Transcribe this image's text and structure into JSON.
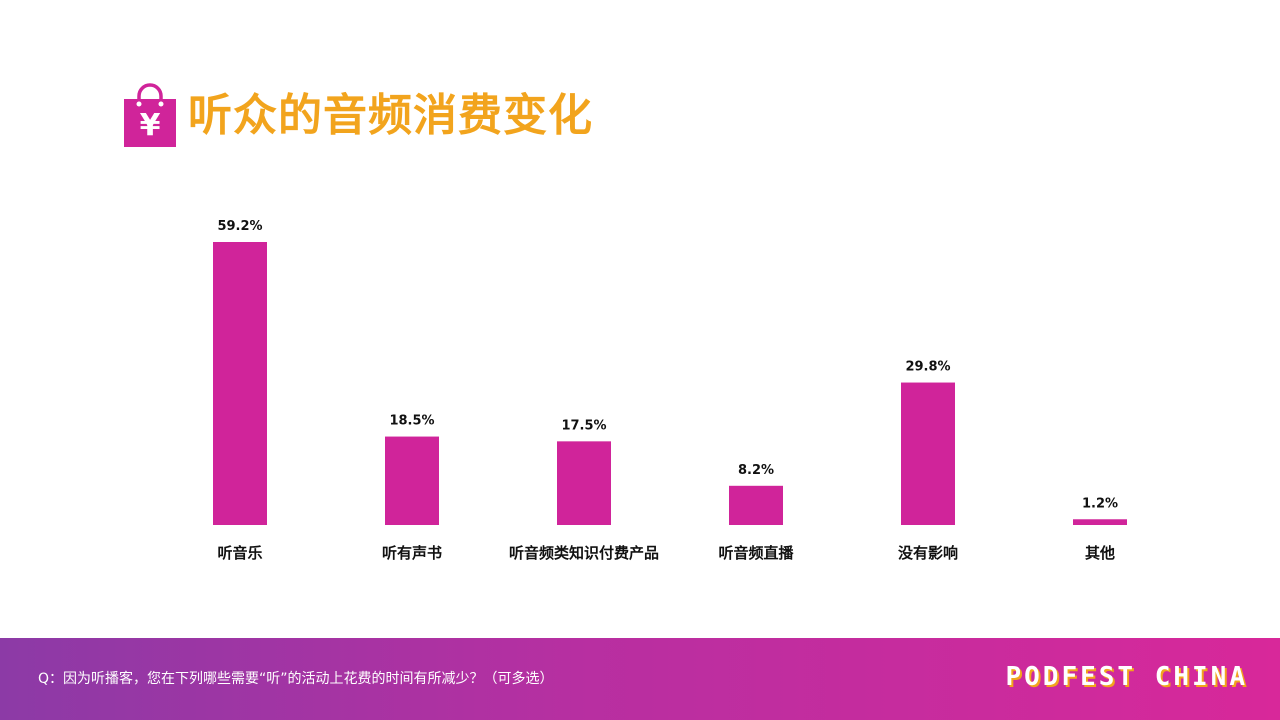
{
  "header": {
    "title": "听众的音频消费变化",
    "icon": "shopping-bag-yuan-icon",
    "icon_color": "#d0249a",
    "icon_glyph": "¥",
    "title_color": "#f2a41d"
  },
  "chart_data": {
    "type": "bar",
    "categories": [
      "听音乐",
      "听有声书",
      "听音频类知识付费产品",
      "听音频直播",
      "没有影响",
      "其他"
    ],
    "values": [
      59.2,
      18.5,
      17.5,
      8.2,
      29.8,
      1.2
    ],
    "value_labels": [
      "59.2%",
      "18.5%",
      "17.5%",
      "8.2%",
      "29.8%",
      "1.2%"
    ],
    "unit": "%",
    "bar_color": "#d0249a",
    "grid": false,
    "legend": "none"
  },
  "footer": {
    "question": "Q：因为听播客，您在下列哪些需要“听”的活动上花费的时间有所减少？（可多选）",
    "brand": "PODFEST CHINA",
    "gradient_start": "#8c3aa6",
    "gradient_end": "#d8289a"
  }
}
